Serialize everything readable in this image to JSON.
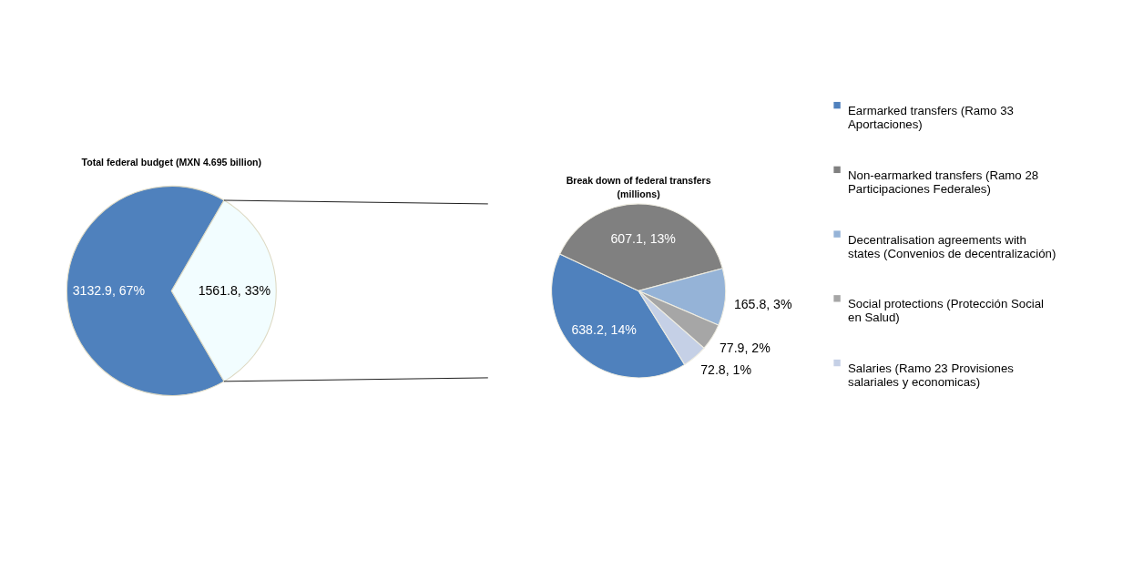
{
  "chart_data": [
    {
      "type": "pie",
      "title": "Total federal budget (MXN 4.695 billion)",
      "categories": [
        null,
        null
      ],
      "values": [
        3132.9,
        1561.8
      ],
      "colors": [
        "#4f81bd",
        "#f2fdff"
      ],
      "value_labels": [
        "3132.9, 67%",
        "1561.8, 33%"
      ]
    },
    {
      "type": "pie",
      "title": "Break down of federal transfers (millions)",
      "categories": [
        "Earmarked transfers (Ramo 33 Aportaciones)",
        "Non-earmarked transfers (Ramo 28 Participaciones Federales)",
        "Decentralisation agreements with states (Convenios de decentralización)",
        "Social protections (Protección Social en Salud)",
        "Salaries (Ramo 23 Provisiones salariales y economicas)"
      ],
      "values": [
        638.2,
        607.1,
        165.8,
        77.9,
        72.8
      ],
      "colors": [
        "#4f81bd",
        "#808080",
        "#95b3d7",
        "#a6a6a6",
        "#c5d0e6"
      ],
      "value_labels": [
        "638.2, 14%",
        "607.1, 13%",
        "165.8, 3%",
        "77.9, 2%",
        "72.8, 1%"
      ],
      "legend": "right"
    }
  ]
}
